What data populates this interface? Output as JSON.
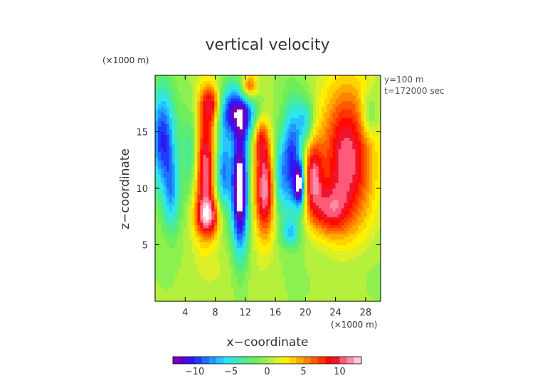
{
  "chart_data": {
    "type": "heatmap",
    "title": "vertical velocity",
    "xlabel": "x−coordinate",
    "ylabel": "z−coordinate",
    "x_unit": "(×1000 m)",
    "y_unit": "(×1000 m)",
    "info": [
      "y=100 m",
      "t=172000 sec"
    ],
    "xlim": [
      0,
      30
    ],
    "ylim": [
      0,
      20
    ],
    "x_ticks": [
      4,
      8,
      12,
      16,
      20,
      24,
      28
    ],
    "x_tick_labels": [
      "4",
      "8",
      "12",
      "16",
      "20",
      "24",
      "28"
    ],
    "y_ticks": [
      5,
      10,
      15
    ],
    "y_tick_labels": [
      "5",
      "10",
      "15"
    ],
    "colorbar": {
      "range": [
        -13,
        13
      ],
      "ticks": [
        -10,
        -5,
        0,
        5,
        10
      ],
      "tick_labels": [
        "−10",
        "−5",
        "0",
        "5",
        "10"
      ],
      "colors": [
        "#7a00b4",
        "#5a00dc",
        "#2a1af0",
        "#1e3cff",
        "#1e6eff",
        "#1e9bff",
        "#26c4ff",
        "#2ee6f0",
        "#38e8c8",
        "#46eaa0",
        "#5aec78",
        "#6eee5a",
        "#8cf050",
        "#b4f03c",
        "#dcf028",
        "#fff000",
        "#ffd200",
        "#ffaa00",
        "#ff8200",
        "#ff5a00",
        "#ff3200",
        "#ff0a00",
        "#f0142d",
        "#ff5a78",
        "#ff8ca5",
        "#ffc8d2"
      ]
    },
    "features": [
      {
        "x": 1.0,
        "z": 14.5,
        "sx": 1.2,
        "sz": 3.2,
        "w": -10
      },
      {
        "x": 2.2,
        "z": 9.5,
        "sx": 0.8,
        "sz": 2.5,
        "w": -6
      },
      {
        "x": 5.0,
        "z": 13.0,
        "sx": 0.9,
        "sz": 3.0,
        "w": -7
      },
      {
        "x": 6.5,
        "z": 12.0,
        "sx": 1.2,
        "sz": 4.0,
        "w": 12
      },
      {
        "x": 7.2,
        "z": 7.5,
        "sx": 1.2,
        "sz": 1.2,
        "w": 8
      },
      {
        "x": 7.5,
        "z": 17.5,
        "sx": 1.0,
        "sz": 1.2,
        "w": 7
      },
      {
        "x": 9.0,
        "z": 11.5,
        "sx": 0.8,
        "sz": 2.8,
        "w": -9
      },
      {
        "x": 10.0,
        "z": 17.0,
        "sx": 1.2,
        "sz": 1.6,
        "w": -9
      },
      {
        "x": 11.3,
        "z": 10.0,
        "sx": 0.8,
        "sz": 4.2,
        "w": -15
      },
      {
        "x": 12.3,
        "z": 16.5,
        "sx": 1.1,
        "sz": 1.5,
        "w": -7
      },
      {
        "x": 12.5,
        "z": 19.0,
        "sx": 0.8,
        "sz": 0.8,
        "w": 8
      },
      {
        "x": 14.6,
        "z": 10.0,
        "sx": 1.0,
        "sz": 3.0,
        "w": 12
      },
      {
        "x": 14.0,
        "z": 14.5,
        "sx": 0.7,
        "sz": 1.3,
        "w": 6
      },
      {
        "x": 16.5,
        "z": 11.0,
        "sx": 0.7,
        "sz": 2.6,
        "w": -6
      },
      {
        "x": 18.2,
        "z": 12.5,
        "sx": 0.9,
        "sz": 3.5,
        "w": -10
      },
      {
        "x": 19.3,
        "z": 10.3,
        "sx": 0.5,
        "sz": 1.4,
        "w": -12
      },
      {
        "x": 18.0,
        "z": 6.0,
        "sx": 0.8,
        "sz": 0.8,
        "w": -5
      },
      {
        "x": 20.0,
        "z": 16.0,
        "sx": 0.8,
        "sz": 1.5,
        "w": -6
      },
      {
        "x": 21.0,
        "z": 11.0,
        "sx": 0.9,
        "sz": 2.3,
        "w": 9
      },
      {
        "x": 25.5,
        "z": 12.5,
        "sx": 2.5,
        "sz": 4.8,
        "w": 11
      },
      {
        "x": 23.0,
        "z": 8.0,
        "sx": 1.6,
        "sz": 1.5,
        "w": 6
      },
      {
        "x": 28.5,
        "z": 16.5,
        "sx": 0.8,
        "sz": 1.4,
        "w": -4
      },
      {
        "x": 26.0,
        "z": 3.5,
        "sx": 3.0,
        "sz": 2.0,
        "w": -1
      },
      {
        "x": 10.0,
        "z": 2.5,
        "sx": 3.0,
        "sz": 2.0,
        "w": 1
      }
    ]
  }
}
